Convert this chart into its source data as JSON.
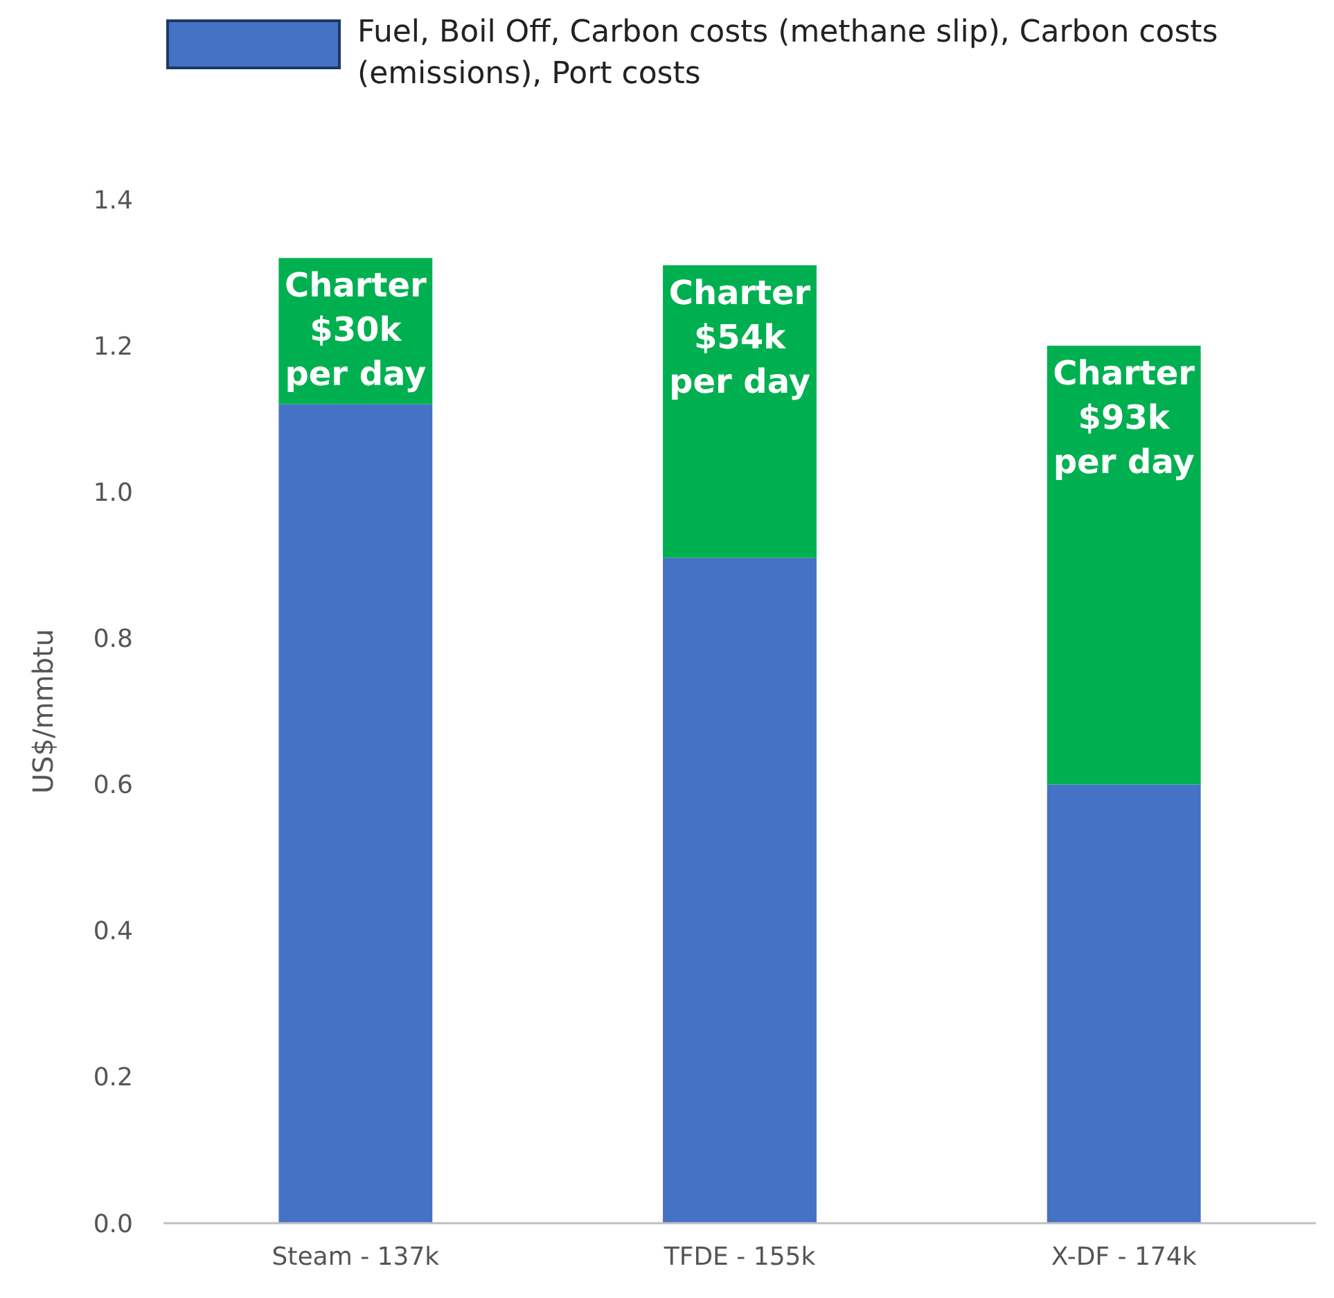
{
  "chart_data": {
    "type": "bar",
    "stacked": true,
    "ylabel": "US$/mmbtu",
    "categories": [
      "Steam - 137k",
      "TFDE - 155k",
      "X-DF - 174k"
    ],
    "ylim": [
      0,
      1.4
    ],
    "yticks": [
      {
        "value": 0,
        "label": "0.0"
      },
      {
        "value": 0.2,
        "label": "0.2"
      },
      {
        "value": 0.4,
        "label": "0.4"
      },
      {
        "value": 0.6,
        "label": "0.6"
      },
      {
        "value": 0.8,
        "label": "0.8"
      },
      {
        "value": 1.0,
        "label": "1.0"
      },
      {
        "value": 1.2,
        "label": "1.2"
      },
      {
        "value": 1.4,
        "label": "1.4"
      }
    ],
    "grid": false,
    "legend": "top",
    "series": [
      {
        "name": "Fuel, Boil Off, Carbon costs (methane slip), Carbon costs (emissions), Port costs",
        "color": "#4472c4",
        "values": [
          1.12,
          0.91,
          0.6
        ]
      },
      {
        "color": "#00b050",
        "values": [
          0.2,
          0.4,
          0.6
        ],
        "value_labels": [
          "Charter\n$30k\nper day",
          "Charter\n$54k\nper day",
          "Charter\n$93k\nper day"
        ]
      }
    ]
  }
}
